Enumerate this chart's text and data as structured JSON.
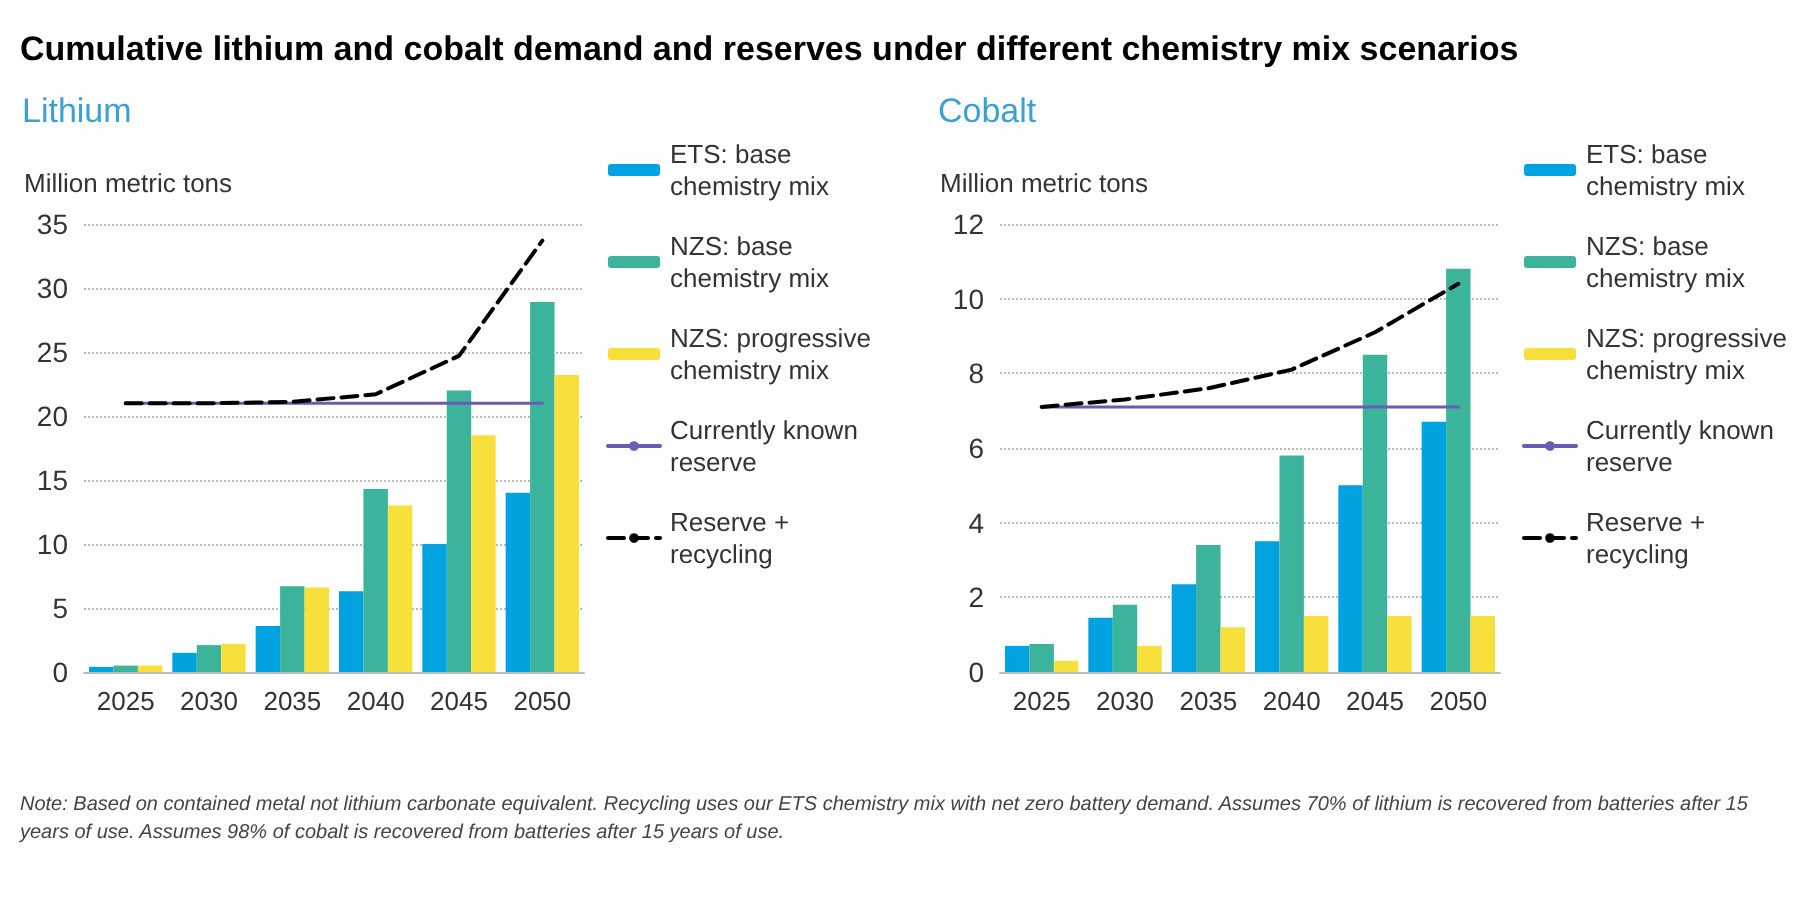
{
  "chart_data": [
    {
      "type": "other",
      "title": "Cumulative lithium and cobalt demand and reserves under different chemistry mix scenarios"
    },
    {
      "type": "bar",
      "title": "Lithium",
      "ylabel": "Million metric tons",
      "categories": [
        "2025",
        "2030",
        "2035",
        "2040",
        "2045",
        "2050"
      ],
      "ylim": [
        0,
        35
      ],
      "yticks": [
        0,
        5,
        10,
        15,
        20,
        25,
        30,
        35
      ],
      "grid": "y",
      "legend": "right",
      "marker": "none",
      "series": [
        {
          "name": "ETS: base chemistry mix",
          "color": "#00a3e0",
          "values": [
            0.4,
            1.5,
            3.6,
            6.3,
            10,
            14
          ]
        },
        {
          "name": "NZS: base chemistry mix",
          "color": "#3cb39b",
          "values": [
            0.5,
            2.1,
            6.7,
            14.3,
            22,
            28.9
          ]
        },
        {
          "name": "NZS: progressive chemistry mix",
          "color": "#f7e03c",
          "values": [
            0.5,
            2.2,
            6.6,
            13,
            18.5,
            23.2
          ]
        },
        {
          "name": "Currently known reserve",
          "type": "line",
          "line_style": "solid",
          "color": "#6b5bb5",
          "values": [
            21,
            21,
            21,
            21,
            21,
            21
          ]
        },
        {
          "name": "Reserve + recycling",
          "type": "line",
          "line_style": "dashed",
          "color": "#000000",
          "values": [
            21,
            21,
            21.1,
            21.7,
            24.7,
            33.7
          ]
        }
      ]
    },
    {
      "type": "bar",
      "title": "Cobalt",
      "ylabel": "Million metric tons",
      "categories": [
        "2025",
        "2030",
        "2035",
        "2040",
        "2045",
        "2050"
      ],
      "ylim": [
        0,
        12
      ],
      "yticks": [
        0,
        2,
        4,
        6,
        8,
        10,
        12
      ],
      "grid": "y",
      "legend": "right",
      "marker": "none",
      "series": [
        {
          "name": "ETS: base chemistry mix",
          "color": "#00a3e0",
          "values": [
            0.7,
            1.45,
            2.35,
            3.5,
            5,
            6.7
          ]
        },
        {
          "name": "NZS: base chemistry mix",
          "color": "#3cb39b",
          "values": [
            0.75,
            1.8,
            3.4,
            5.8,
            8.5,
            10.8
          ]
        },
        {
          "name": "NZS: progressive chemistry mix",
          "color": "#f7e03c",
          "values": [
            0.3,
            0.7,
            1.2,
            1.5,
            1.5,
            1.5
          ]
        },
        {
          "name": "Currently known reserve",
          "type": "line",
          "line_style": "solid",
          "color": "#6b5bb5",
          "values": [
            7.1,
            7.1,
            7.1,
            7.1,
            7.1,
            7.1
          ]
        },
        {
          "name": "Reserve + recycling",
          "type": "line",
          "line_style": "dashed",
          "color": "#000000",
          "values": [
            7.1,
            7.3,
            7.6,
            8.1,
            9.1,
            10.4
          ]
        }
      ]
    },
    {
      "type": "other",
      "annotations": [
        "Note: Based on contained metal not lithium carbonate equivalent. Recycling uses our ETS chemistry mix with net zero battery demand. Assumes 70% of lithium is recovered from batteries after 15 years of use. Assumes 98% of cobalt is recovered from batteries after 15 years of use."
      ]
    }
  ]
}
